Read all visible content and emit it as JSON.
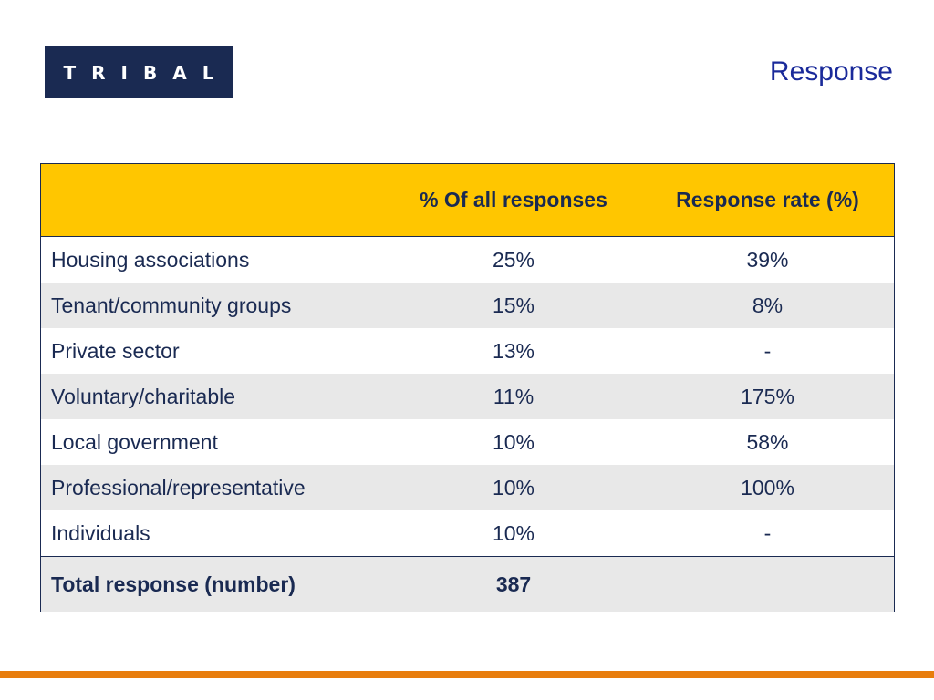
{
  "header": {
    "logo_text": "TRIBAL",
    "title": "Response"
  },
  "table": {
    "columns": [
      "",
      "% Of all responses",
      "Response rate (%)"
    ],
    "rows": [
      {
        "label": "Housing associations",
        "pct_all": "25%",
        "rate": "39%"
      },
      {
        "label": "Tenant/community groups",
        "pct_all": "15%",
        "rate": "8%"
      },
      {
        "label": "Private sector",
        "pct_all": "13%",
        "rate": "-"
      },
      {
        "label": "Voluntary/charitable",
        "pct_all": "11%",
        "rate": "175%"
      },
      {
        "label": "Local government",
        "pct_all": "10%",
        "rate": "58%"
      },
      {
        "label": "Professional/representative",
        "pct_all": "10%",
        "rate": "100%"
      },
      {
        "label": "Individuals",
        "pct_all": "10%",
        "rate": "-"
      }
    ],
    "total": {
      "label": "Total response (number)",
      "pct_all": "387",
      "rate": ""
    }
  },
  "colors": {
    "header_fill": "#ffc600",
    "text_navy": "#1a2a52",
    "title_blue": "#1a2a9a",
    "row_alt": "#e8e8e8",
    "accent_orange": "#e87d0d"
  }
}
